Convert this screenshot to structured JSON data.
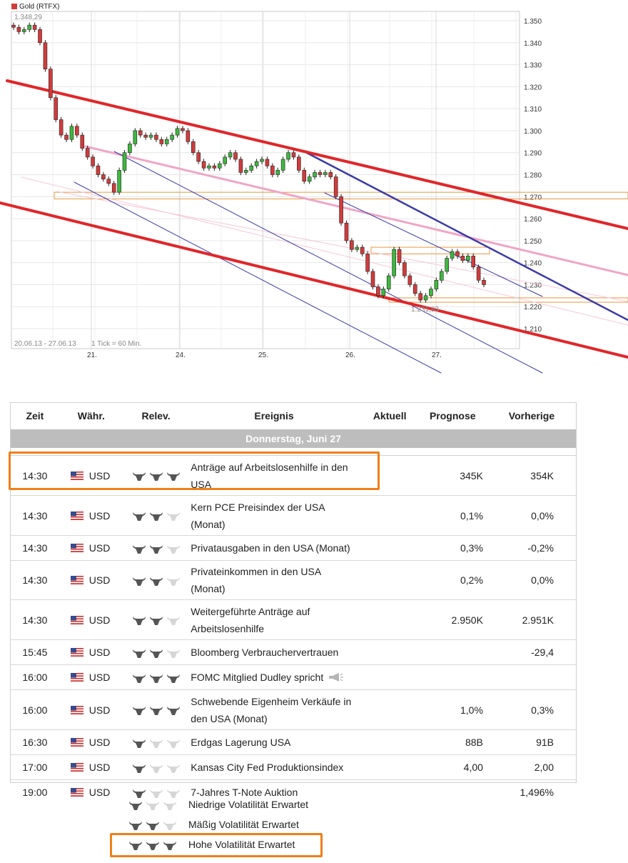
{
  "chart": {
    "legend_label": "Gold (RTFX)",
    "date_range": "20.06.13 - 27.06.13",
    "tick_info": "1 Tick = 60 Min.",
    "max_label": "1.348,29",
    "min_label": "1.231,83"
  },
  "chart_data": {
    "type": "line",
    "title": "Gold (RTFX)",
    "xlabel": "",
    "ylabel": "",
    "x_tick_labels": [
      "21.",
      "24.",
      "25.",
      "26.",
      "27."
    ],
    "y_tick_labels": [
      "1.350",
      "1.340",
      "1.330",
      "1.320",
      "1.310",
      "1.300",
      "1.290",
      "1.280",
      "1.270",
      "1.260",
      "1.250",
      "1.240",
      "1.230",
      "1.220",
      "1.210"
    ],
    "ylim": [
      1205,
      1353
    ],
    "grid": true,
    "series": [
      {
        "values": [
          1347,
          1345,
          1346,
          1348,
          1346,
          1340,
          1328,
          1315,
          1305,
          1298,
          1296,
          1302,
          1298,
          1292,
          1288,
          1284,
          1280,
          1278,
          1276,
          1272,
          1282,
          1290,
          1294,
          1300,
          1298,
          1297,
          1298,
          1296,
          1294,
          1296,
          1298,
          1301,
          1300,
          1295,
          1290,
          1286,
          1283,
          1284,
          1283,
          1285,
          1288,
          1290,
          1287,
          1281,
          1282,
          1284,
          1286,
          1287,
          1284,
          1280,
          1282,
          1287,
          1290,
          1288,
          1282,
          1277,
          1279,
          1281,
          1280,
          1281,
          1279,
          1270,
          1258,
          1250,
          1246,
          1247,
          1244,
          1236,
          1229,
          1225,
          1228,
          1234,
          1246,
          1240,
          1234,
          1230,
          1226,
          1223,
          1225,
          1228,
          1232,
          1236,
          1242,
          1245,
          1243,
          1241,
          1243,
          1238,
          1232,
          1230
        ]
      }
    ],
    "annotations": [
      "1.348,29",
      "1.231,83"
    ],
    "levels": [
      {
        "kind": "support-zone",
        "from": 1269,
        "to": 1272
      },
      {
        "kind": "resistance-zone",
        "from": 1244,
        "to": 1247
      },
      {
        "kind": "support-zone",
        "from": 1222,
        "to": 1224
      }
    ]
  },
  "table": {
    "headers": {
      "time": "Zeit",
      "currency": "Währ.",
      "relevance": "Relev.",
      "event": "Ereignis",
      "actual": "Aktuell",
      "forecast": "Prognose",
      "previous": "Vorherige"
    },
    "day_label": "Donnerstag, Juni 27",
    "rows": [
      {
        "time": "14:30",
        "currency": "USD",
        "bulls": 3,
        "event": "Anträge auf Arbeitslosenhilfe in den USA",
        "actual": "",
        "forecast": "345K",
        "previous": "354K"
      },
      {
        "time": "14:30",
        "currency": "USD",
        "bulls": 2,
        "event": "Kern PCE Preisindex der USA (Monat)",
        "actual": "",
        "forecast": "0,1%",
        "previous": "0,0%"
      },
      {
        "time": "14:30",
        "currency": "USD",
        "bulls": 2,
        "event": "Privatausgaben in den USA (Monat)",
        "actual": "",
        "forecast": "0,3%",
        "previous": "-0,2%"
      },
      {
        "time": "14:30",
        "currency": "USD",
        "bulls": 2,
        "event": "Privateinkommen in den USA (Monat)",
        "actual": "",
        "forecast": "0,2%",
        "previous": "0,0%"
      },
      {
        "time": "14:30",
        "currency": "USD",
        "bulls": 2,
        "event": "Weitergeführte Anträge auf Arbeitslosenhilfe",
        "actual": "",
        "forecast": "2.950K",
        "previous": "2.951K"
      },
      {
        "time": "15:45",
        "currency": "USD",
        "bulls": 2,
        "event": "Bloomberg Verbrauchervertrauen",
        "actual": "",
        "forecast": "",
        "previous": "-29,4"
      },
      {
        "time": "16:00",
        "currency": "USD",
        "bulls": 3,
        "event": "FOMC Mitglied Dudley spricht",
        "speaker": true,
        "actual": "",
        "forecast": "",
        "previous": ""
      },
      {
        "time": "16:00",
        "currency": "USD",
        "bulls": 3,
        "event": "Schwebende Eigenheim Verkäufe in den USA (Monat)",
        "actual": "",
        "forecast": "1,0%",
        "previous": "0,3%"
      },
      {
        "time": "16:30",
        "currency": "USD",
        "bulls": 1,
        "event": "Erdgas Lagerung USA",
        "actual": "",
        "forecast": "88B",
        "previous": "91B"
      },
      {
        "time": "17:00",
        "currency": "USD",
        "bulls": 1,
        "event": "Kansas City Fed Produktionsindex",
        "actual": "",
        "forecast": "4,00",
        "previous": "2,00"
      },
      {
        "time": "19:00",
        "currency": "USD",
        "bulls": 1,
        "event": "7-Jahres T-Note Auktion",
        "actual": "",
        "forecast": "",
        "previous": "1,496%"
      }
    ]
  },
  "legend": [
    {
      "bulls": 1,
      "label": "Niedrige Volatilität Erwartet"
    },
    {
      "bulls": 2,
      "label": "Mäßig Volatilität Erwartet"
    },
    {
      "bulls": 3,
      "label": "Hohe Volatilität Erwartet"
    }
  ],
  "colors": {
    "bull_on": "#555555",
    "bull_off": "#d6d6d6",
    "highlight": "#ef7f1a",
    "day_row": "#bdbdbd",
    "candle_up": "#3db83d",
    "candle_down": "#d23b3b",
    "trend_red": "#e0262a",
    "trend_blue": "#3a3aa8",
    "trend_pink": "#f0a6c6"
  }
}
